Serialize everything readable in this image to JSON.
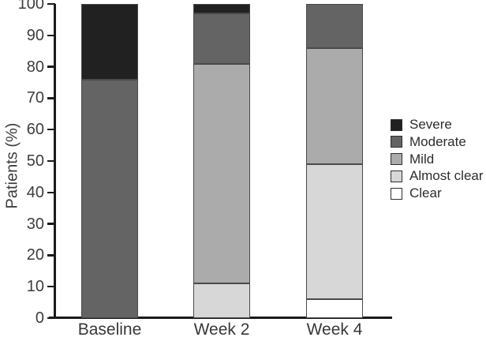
{
  "chart_data": {
    "type": "bar",
    "subtype": "stacked-vertical",
    "title": "",
    "ylabel": "Patients (%)",
    "xlabel": "",
    "categories": [
      "Baseline",
      "Week 2",
      "Week 4"
    ],
    "series": [
      {
        "name": "Clear",
        "color": "#ffffff",
        "values": [
          0,
          0,
          6
        ]
      },
      {
        "name": "Almost clear",
        "color": "#d7d7d7",
        "values": [
          0,
          11,
          43
        ]
      },
      {
        "name": "Mild",
        "color": "#ababab",
        "values": [
          0,
          70,
          37
        ]
      },
      {
        "name": "Moderate",
        "color": "#646464",
        "values": [
          76,
          16,
          14
        ]
      },
      {
        "name": "Severe",
        "color": "#212121",
        "values": [
          24,
          3,
          0
        ]
      }
    ],
    "stack_order": "bottom-to-top",
    "ylim": [
      0,
      100
    ],
    "yticks": [
      0,
      10,
      20,
      30,
      40,
      50,
      60,
      70,
      80,
      90,
      100
    ],
    "grid": false,
    "legend": {
      "position": "right",
      "order_top_to_bottom": [
        "Severe",
        "Moderate",
        "Mild",
        "Almost clear",
        "Clear"
      ]
    },
    "colors_note": {
      "axis": "#1a1a1a",
      "segment_outline": "#4a4a4a",
      "text": "#3d3d3d"
    }
  }
}
